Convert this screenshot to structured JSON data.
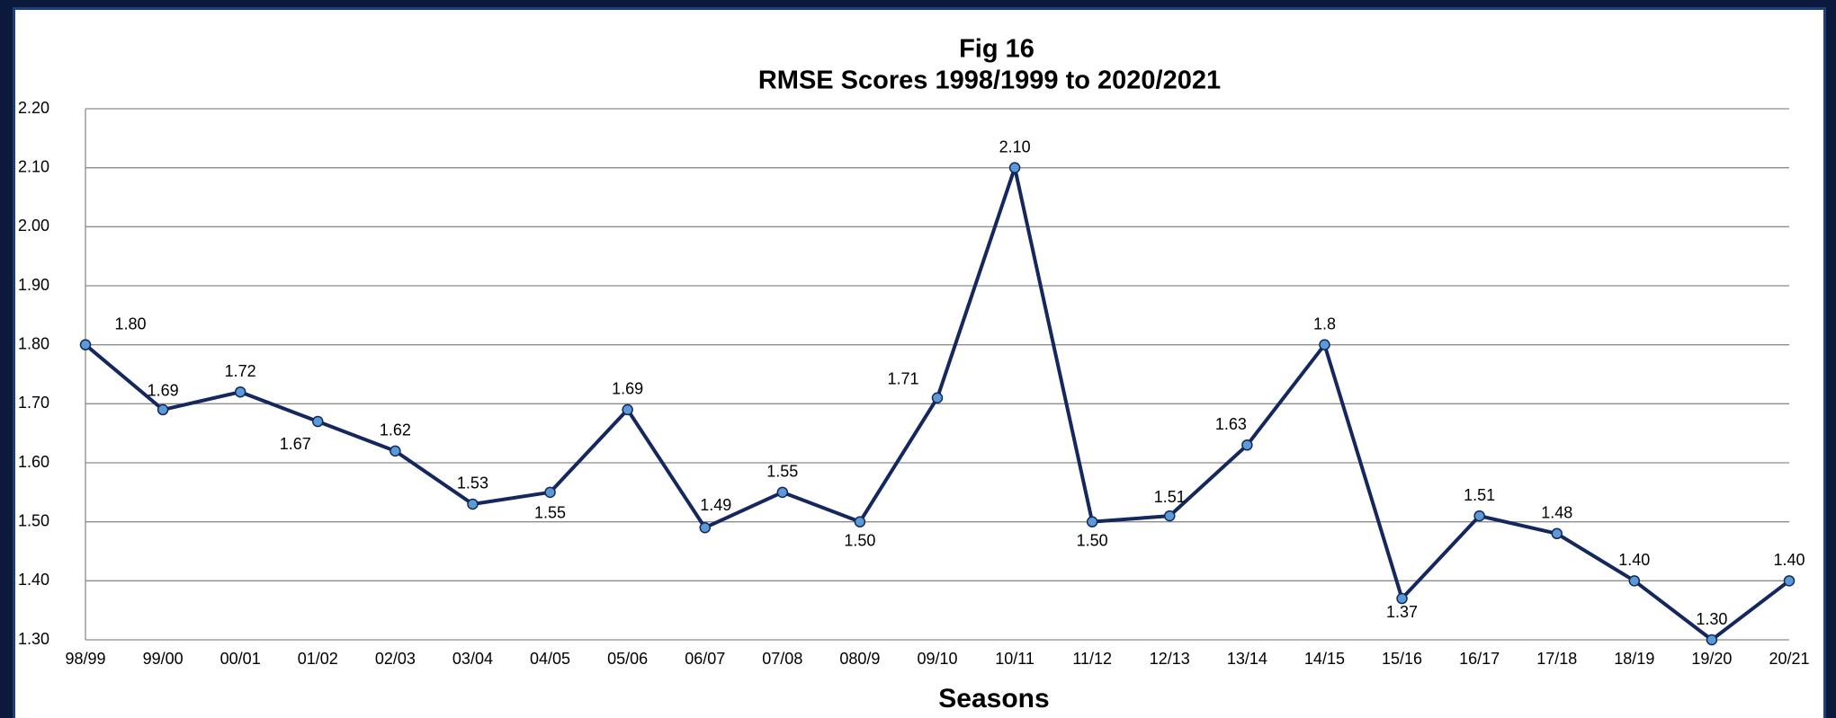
{
  "chart_data": {
    "type": "line",
    "title": "Fig 16",
    "subtitle": "RMSE Scores 1998/1999  to  2020/2021",
    "x_label": "Seasons",
    "categories": [
      "98/99",
      "99/00",
      "00/01",
      "01/02",
      "02/03",
      "03/04",
      "04/05",
      "05/06",
      "06/07",
      "07/08",
      "080/9",
      "09/10",
      "10/11",
      "11/12",
      "12/13",
      "13/14",
      "14/15",
      "15/16",
      "16/17",
      "17/18",
      "18/19",
      "19/20",
      "20/21"
    ],
    "series": [
      {
        "name": "RMSE",
        "color": "#14275e",
        "marker_color": "#5b9bd5",
        "values": [
          1.8,
          1.69,
          1.72,
          1.67,
          1.62,
          1.53,
          1.55,
          1.69,
          1.49,
          1.55,
          1.5,
          1.71,
          2.1,
          1.5,
          1.51,
          1.63,
          1.8,
          1.37,
          1.51,
          1.48,
          1.4,
          1.3,
          1.4
        ],
        "value_labels": [
          "1.80",
          "1.69",
          "1.72",
          "1.67",
          "1.62",
          "1.53",
          "1.55",
          "1.69",
          "1.49",
          "1.55",
          "1.50",
          "1.71",
          "2.10",
          "1.50",
          "1.51",
          "1.63",
          "1.8",
          "1.37",
          "1.51",
          "1.48",
          "1.40",
          "1.30",
          "1.40"
        ]
      }
    ],
    "ylim": [
      1.3,
      2.2
    ],
    "yticks": [
      {
        "value": 1.3,
        "label": "1.30"
      },
      {
        "value": 1.4,
        "label": "1.40"
      },
      {
        "value": 1.5,
        "label": "1.50"
      },
      {
        "value": 1.6,
        "label": "1.60"
      },
      {
        "value": 1.7,
        "label": "1.70"
      },
      {
        "value": 1.8,
        "label": "1.80"
      },
      {
        "value": 1.9,
        "label": "1.90"
      },
      {
        "value": 2.0,
        "label": "2.00"
      },
      {
        "value": 2.1,
        "label": "2.10"
      },
      {
        "value": 2.2,
        "label": "2.20"
      }
    ],
    "grid": true
  }
}
